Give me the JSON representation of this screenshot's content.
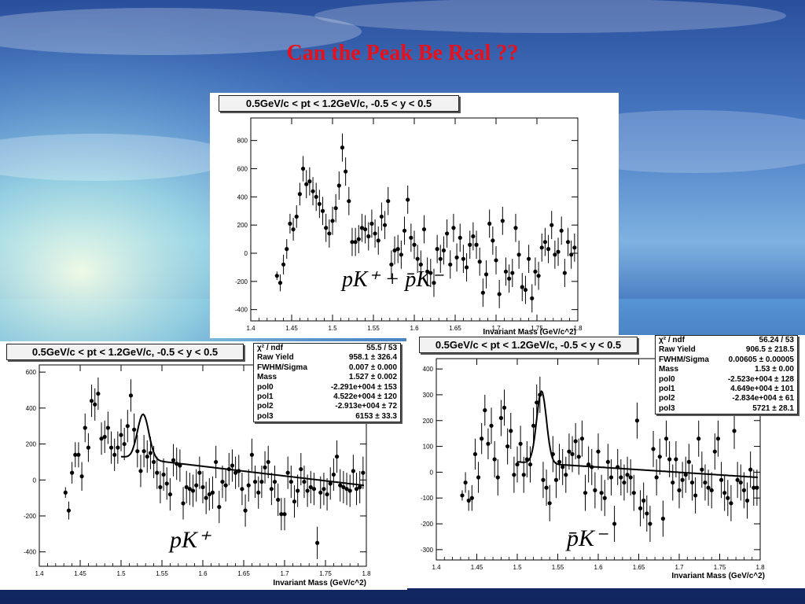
{
  "slide_title": "Can the Peak Be Real ??",
  "colors": {
    "title": "#e8101a",
    "points": "#000000",
    "fit": "#000000",
    "panel": "#ffffff"
  },
  "chart_data": [
    {
      "id": "top",
      "type": "scatter",
      "title": "0.5GeV/c < pt < 1.2GeV/c, -0.5 < y < 0.5",
      "xlabel": "Invariant Mass (GeV/c^2)",
      "ylabel": "",
      "annotation": "pK⁺ + p̄K⁻",
      "xlim": [
        1.4,
        1.8
      ],
      "ylim": [
        -480,
        960
      ],
      "xticks": [
        1.4,
        1.45,
        1.5,
        1.55,
        1.6,
        1.65,
        1.7,
        1.75,
        1.8
      ],
      "xtick_labels": [
        "1.4",
        "1.45",
        "1.5",
        "1.55",
        "1.6",
        "1.65",
        "1.7",
        "1.75",
        "1.8"
      ],
      "yticks": [
        -400,
        -200,
        0,
        200,
        400,
        600,
        800
      ],
      "ytick_labels": [
        "-400",
        "-200",
        "0",
        "200",
        "400",
        "600",
        "800"
      ],
      "grid": false,
      "x": [
        1.432,
        1.436,
        1.44,
        1.444,
        1.448,
        1.452,
        1.456,
        1.46,
        1.464,
        1.468,
        1.472,
        1.476,
        1.48,
        1.484,
        1.488,
        1.492,
        1.496,
        1.5,
        1.504,
        1.508,
        1.512,
        1.516,
        1.52,
        1.524,
        1.528,
        1.532,
        1.536,
        1.54,
        1.544,
        1.548,
        1.552,
        1.556,
        1.56,
        1.564,
        1.568,
        1.572,
        1.576,
        1.58,
        1.584,
        1.588,
        1.592,
        1.596,
        1.6,
        1.604,
        1.608,
        1.612,
        1.616,
        1.62,
        1.624,
        1.628,
        1.632,
        1.636,
        1.64,
        1.644,
        1.648,
        1.652,
        1.656,
        1.66,
        1.664,
        1.668,
        1.672,
        1.676,
        1.68,
        1.684,
        1.688,
        1.692,
        1.696,
        1.7,
        1.704,
        1.708,
        1.712,
        1.716,
        1.72,
        1.724,
        1.728,
        1.732,
        1.736,
        1.74,
        1.744,
        1.748,
        1.752,
        1.756,
        1.76,
        1.764,
        1.768,
        1.772,
        1.776,
        1.78,
        1.784,
        1.788,
        1.792,
        1.796
      ],
      "values": [
        -160,
        -210,
        -80,
        30,
        210,
        170,
        260,
        420,
        600,
        490,
        510,
        440,
        400,
        350,
        300,
        180,
        140,
        230,
        320,
        480,
        750,
        580,
        370,
        80,
        80,
        100,
        180,
        170,
        120,
        210,
        140,
        90,
        260,
        200,
        370,
        -80,
        20,
        30,
        -10,
        160,
        380,
        110,
        60,
        -40,
        -80,
        170,
        -130,
        -140,
        -210,
        30,
        -40,
        20,
        140,
        -80,
        180,
        -30,
        110,
        -40,
        -100,
        60,
        120,
        60,
        -60,
        -280,
        -150,
        210,
        90,
        -50,
        -290,
        230,
        -130,
        -180,
        -140,
        180,
        -10,
        -240,
        -260,
        -40,
        -320,
        -130,
        -160,
        40,
        80,
        30,
        200,
        -10,
        10,
        160,
        -140,
        80,
        -10,
        40
      ],
      "errors": [
        30,
        60,
        70,
        70,
        70,
        80,
        80,
        80,
        90,
        100,
        100,
        100,
        100,
        100,
        100,
        100,
        100,
        100,
        100,
        100,
        100,
        100,
        100,
        100,
        100,
        100,
        100,
        100,
        100,
        100,
        100,
        100,
        100,
        100,
        100,
        100,
        100,
        100,
        100,
        100,
        100,
        100,
        100,
        100,
        100,
        100,
        100,
        100,
        100,
        100,
        100,
        100,
        100,
        100,
        100,
        100,
        100,
        100,
        100,
        100,
        100,
        100,
        100,
        100,
        100,
        100,
        100,
        100,
        100,
        100,
        100,
        100,
        100,
        100,
        100,
        100,
        100,
        100,
        100,
        100,
        100,
        100,
        100,
        100,
        100,
        100,
        100,
        100,
        100,
        100,
        100,
        100
      ]
    },
    {
      "id": "left",
      "type": "scatter",
      "title": "0.5GeV/c < pt < 1.2GeV/c, -0.5 < y < 0.5",
      "xlabel": "Invariant Mass (GeV/c^2)",
      "ylabel": "",
      "annotation": "pK⁺",
      "xlim": [
        1.4,
        1.8
      ],
      "ylim": [
        -480,
        640
      ],
      "xticks": [
        1.4,
        1.45,
        1.5,
        1.55,
        1.6,
        1.65,
        1.7,
        1.75,
        1.8
      ],
      "xtick_labels": [
        "1.4",
        "1.45",
        "1.5",
        "1.55",
        "1.6",
        "1.65",
        "1.7",
        "1.75",
        "1.8"
      ],
      "yticks": [
        -400,
        -200,
        0,
        200,
        400,
        600
      ],
      "ytick_labels": [
        "-400",
        "-200",
        "0",
        "200",
        "400",
        "600"
      ],
      "grid": false,
      "x": [
        1.432,
        1.436,
        1.44,
        1.444,
        1.448,
        1.452,
        1.456,
        1.46,
        1.464,
        1.468,
        1.472,
        1.476,
        1.48,
        1.484,
        1.488,
        1.492,
        1.496,
        1.5,
        1.504,
        1.508,
        1.512,
        1.516,
        1.52,
        1.524,
        1.528,
        1.532,
        1.536,
        1.54,
        1.544,
        1.548,
        1.552,
        1.556,
        1.56,
        1.564,
        1.568,
        1.572,
        1.576,
        1.58,
        1.584,
        1.588,
        1.592,
        1.596,
        1.6,
        1.604,
        1.608,
        1.612,
        1.616,
        1.62,
        1.624,
        1.628,
        1.632,
        1.636,
        1.64,
        1.644,
        1.648,
        1.652,
        1.656,
        1.66,
        1.664,
        1.668,
        1.672,
        1.676,
        1.68,
        1.684,
        1.688,
        1.692,
        1.696,
        1.7,
        1.704,
        1.708,
        1.712,
        1.716,
        1.72,
        1.724,
        1.728,
        1.732,
        1.736,
        1.74,
        1.744,
        1.748,
        1.752,
        1.756,
        1.76,
        1.764,
        1.768,
        1.772,
        1.776,
        1.78,
        1.784,
        1.788,
        1.792,
        1.796
      ],
      "values": [
        -70,
        -170,
        40,
        140,
        140,
        20,
        290,
        180,
        440,
        420,
        480,
        230,
        240,
        290,
        180,
        140,
        180,
        250,
        200,
        300,
        470,
        280,
        160,
        50,
        160,
        130,
        150,
        100,
        40,
        -40,
        30,
        -20,
        -80,
        110,
        90,
        80,
        -130,
        -40,
        -50,
        -60,
        -30,
        40,
        -40,
        -100,
        -80,
        -70,
        100,
        -150,
        -10,
        -30,
        60,
        80,
        40,
        50,
        -50,
        -170,
        -30,
        140,
        -10,
        -70,
        -10,
        70,
        100,
        -50,
        -10,
        -110,
        -190,
        -190,
        40,
        -10,
        -120,
        -60,
        60,
        -10,
        -60,
        -40,
        -50,
        -350,
        -70,
        -50,
        -80,
        -20,
        30,
        130,
        -30,
        -40,
        -50,
        -60,
        50,
        -50,
        -40,
        40
      ],
      "errors": [
        30,
        50,
        60,
        70,
        70,
        80,
        80,
        80,
        90,
        90,
        90,
        90,
        90,
        90,
        90,
        90,
        90,
        90,
        90,
        90,
        90,
        90,
        90,
        90,
        90,
        90,
        90,
        90,
        90,
        90,
        90,
        90,
        90,
        90,
        90,
        90,
        90,
        90,
        90,
        90,
        90,
        90,
        90,
        90,
        90,
        90,
        90,
        90,
        90,
        90,
        90,
        90,
        90,
        90,
        90,
        90,
        90,
        90,
        90,
        90,
        90,
        90,
        90,
        90,
        90,
        90,
        90,
        90,
        90,
        90,
        90,
        90,
        90,
        90,
        90,
        90,
        90,
        90,
        90,
        90,
        90,
        90,
        90,
        90,
        90,
        90,
        90,
        90,
        90,
        90,
        90,
        90
      ],
      "fit": {
        "peak_x": 1.527,
        "peak_height": 250,
        "sigma": 0.007,
        "bg_start": 130,
        "bg_end": -30,
        "x_from": 1.5,
        "x_to": 1.797
      },
      "stats": [
        {
          "label": "χ² / ndf",
          "value": "55.5 / 53"
        },
        {
          "label": "Raw Yield",
          "value": "958.1 ± 326.4"
        },
        {
          "label": "FWHM/Sigma",
          "value": "0.007 ± 0.000"
        },
        {
          "label": "Mass",
          "value": "1.527 ± 0.002"
        },
        {
          "label": "pol0",
          "value": "-2.291e+004  ± 153"
        },
        {
          "label": "pol1",
          "value": "4.522e+004  ± 120"
        },
        {
          "label": "pol2",
          "value": "-2.913e+004  ± 72"
        },
        {
          "label": "pol3",
          "value": "6153 ± 33.3"
        }
      ]
    },
    {
      "id": "right",
      "type": "scatter",
      "title": "0.5GeV/c < pt < 1.2GeV/c, -0.5 < y < 0.5",
      "xlabel": "Invariant Mass (GeV/c^2)",
      "ylabel": "",
      "annotation": "p̄K⁻",
      "xlim": [
        1.4,
        1.8
      ],
      "ylim": [
        -340,
        440
      ],
      "xticks": [
        1.4,
        1.45,
        1.5,
        1.55,
        1.6,
        1.65,
        1.7,
        1.75,
        1.8
      ],
      "xtick_labels": [
        "1.4",
        "1.45",
        "1.5",
        "1.55",
        "1.6",
        "1.65",
        "1.7",
        "1.75",
        "1.8"
      ],
      "yticks": [
        -300,
        -200,
        -100,
        0,
        100,
        200,
        300,
        400
      ],
      "ytick_labels": [
        "-300",
        "-200",
        "-100",
        "0",
        "100",
        "200",
        "300",
        "400"
      ],
      "grid": false,
      "x": [
        1.432,
        1.436,
        1.44,
        1.444,
        1.448,
        1.452,
        1.456,
        1.46,
        1.464,
        1.468,
        1.472,
        1.476,
        1.48,
        1.484,
        1.488,
        1.492,
        1.496,
        1.5,
        1.504,
        1.508,
        1.512,
        1.516,
        1.52,
        1.524,
        1.528,
        1.532,
        1.536,
        1.54,
        1.544,
        1.548,
        1.552,
        1.556,
        1.56,
        1.564,
        1.568,
        1.572,
        1.576,
        1.58,
        1.584,
        1.588,
        1.592,
        1.596,
        1.6,
        1.604,
        1.608,
        1.612,
        1.616,
        1.62,
        1.624,
        1.628,
        1.632,
        1.636,
        1.64,
        1.644,
        1.648,
        1.652,
        1.656,
        1.66,
        1.664,
        1.668,
        1.672,
        1.676,
        1.68,
        1.684,
        1.688,
        1.692,
        1.696,
        1.7,
        1.704,
        1.708,
        1.712,
        1.716,
        1.72,
        1.724,
        1.728,
        1.732,
        1.736,
        1.74,
        1.744,
        1.748,
        1.752,
        1.756,
        1.76,
        1.764,
        1.768,
        1.772,
        1.776,
        1.78,
        1.784,
        1.788,
        1.792,
        1.796
      ],
      "values": [
        -90,
        -40,
        -110,
        -100,
        70,
        -20,
        130,
        240,
        110,
        180,
        50,
        -20,
        210,
        250,
        100,
        160,
        -10,
        30,
        110,
        -10,
        50,
        30,
        180,
        270,
        300,
        -30,
        -60,
        -120,
        70,
        -30,
        40,
        20,
        -10,
        80,
        70,
        120,
        60,
        130,
        -80,
        30,
        20,
        -70,
        80,
        -80,
        -100,
        40,
        -20,
        -200,
        20,
        -20,
        -40,
        -10,
        -20,
        -80,
        200,
        -140,
        -110,
        -160,
        -200,
        90,
        -20,
        60,
        -180,
        130,
        50,
        -40,
        50,
        -70,
        -30,
        -10,
        40,
        -40,
        -90,
        130,
        10,
        -40,
        -60,
        -70,
        80,
        130,
        -30,
        -80,
        -100,
        -120,
        160,
        -30,
        -40,
        -70,
        -110,
        10,
        -60,
        -60
      ],
      "errors": [
        20,
        40,
        40,
        50,
        60,
        60,
        60,
        60,
        60,
        70,
        70,
        70,
        70,
        70,
        70,
        70,
        70,
        70,
        70,
        70,
        70,
        70,
        70,
        70,
        70,
        70,
        70,
        70,
        70,
        70,
        70,
        70,
        70,
        70,
        70,
        70,
        70,
        70,
        70,
        70,
        70,
        70,
        70,
        70,
        70,
        70,
        70,
        70,
        70,
        70,
        70,
        70,
        70,
        70,
        70,
        70,
        70,
        70,
        70,
        70,
        70,
        70,
        70,
        70,
        70,
        70,
        70,
        70,
        70,
        70,
        70,
        70,
        70,
        70,
        70,
        70,
        70,
        70,
        70,
        70,
        70,
        70,
        70,
        70,
        70,
        70,
        70,
        70,
        70,
        70,
        70,
        70
      ],
      "fit": {
        "peak_x": 1.53,
        "peak_height": 280,
        "sigma": 0.00605,
        "bg_start": 40,
        "bg_end": -20,
        "x_from": 1.5,
        "x_to": 1.797
      },
      "stats": [
        {
          "label": "χ² / ndf",
          "value": "56.24 / 53"
        },
        {
          "label": "Raw Yield",
          "value": "906.5 ± 218.5"
        },
        {
          "label": "FWHM/Sigma",
          "value": "0.00605  ± 0.00005"
        },
        {
          "label": "Mass",
          "value": "1.53 ± 0.00"
        },
        {
          "label": "pol0",
          "value": "-2.523e+004  ± 128"
        },
        {
          "label": "pol1",
          "value": "4.649e+004  ± 101"
        },
        {
          "label": "pol2",
          "value": "-2.834e+004  ± 61"
        },
        {
          "label": "pol3",
          "value": "5721 ± 28.1"
        }
      ]
    }
  ]
}
